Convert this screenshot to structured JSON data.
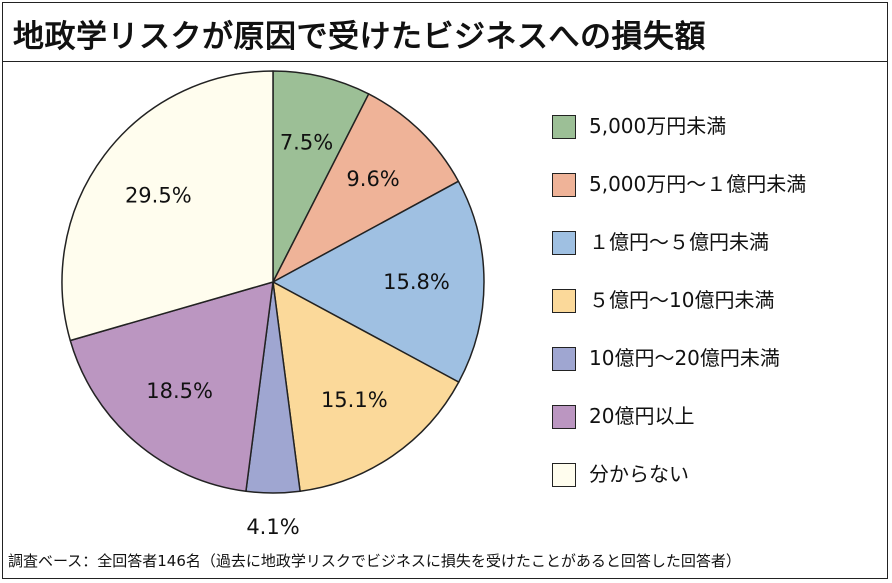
{
  "title": "地政学リスクが原因で受けたビジネスへの損失額",
  "footnote": "調査ベース：全回答者146名（過去に地政学リスクでビジネスに損失を受けたことがあると回答した回答者）",
  "chart_data": {
    "type": "pie",
    "title": "地政学リスクが原因で受けたビジネスへの損失額",
    "unit": "%",
    "slices": [
      {
        "label": "5,000万円未満",
        "value": 7.5,
        "value_label": "7.5%",
        "color": "#9cbf96"
      },
      {
        "label": "5,000万円～１億円未満",
        "value": 9.6,
        "value_label": "9.6%",
        "color": "#efb398"
      },
      {
        "label": "１億円～５億円未満",
        "value": 15.8,
        "value_label": "15.8%",
        "color": "#9fc0e2"
      },
      {
        "label": "５億円～10億円未満",
        "value": 15.1,
        "value_label": "15.1%",
        "color": "#fbd99a"
      },
      {
        "label": "10億円～20億円未満",
        "value": 4.1,
        "value_label": "4.1%",
        "color": "#9fa6d1"
      },
      {
        "label": "20億円以上",
        "value": 18.5,
        "value_label": "18.5%",
        "color": "#bb96c1"
      },
      {
        "label": "分からない",
        "value": 29.5,
        "value_label": "29.5%",
        "color": "#fffdee"
      }
    ],
    "start_angle": "12 o'clock",
    "direction": "clockwise",
    "legend_position": "right"
  }
}
